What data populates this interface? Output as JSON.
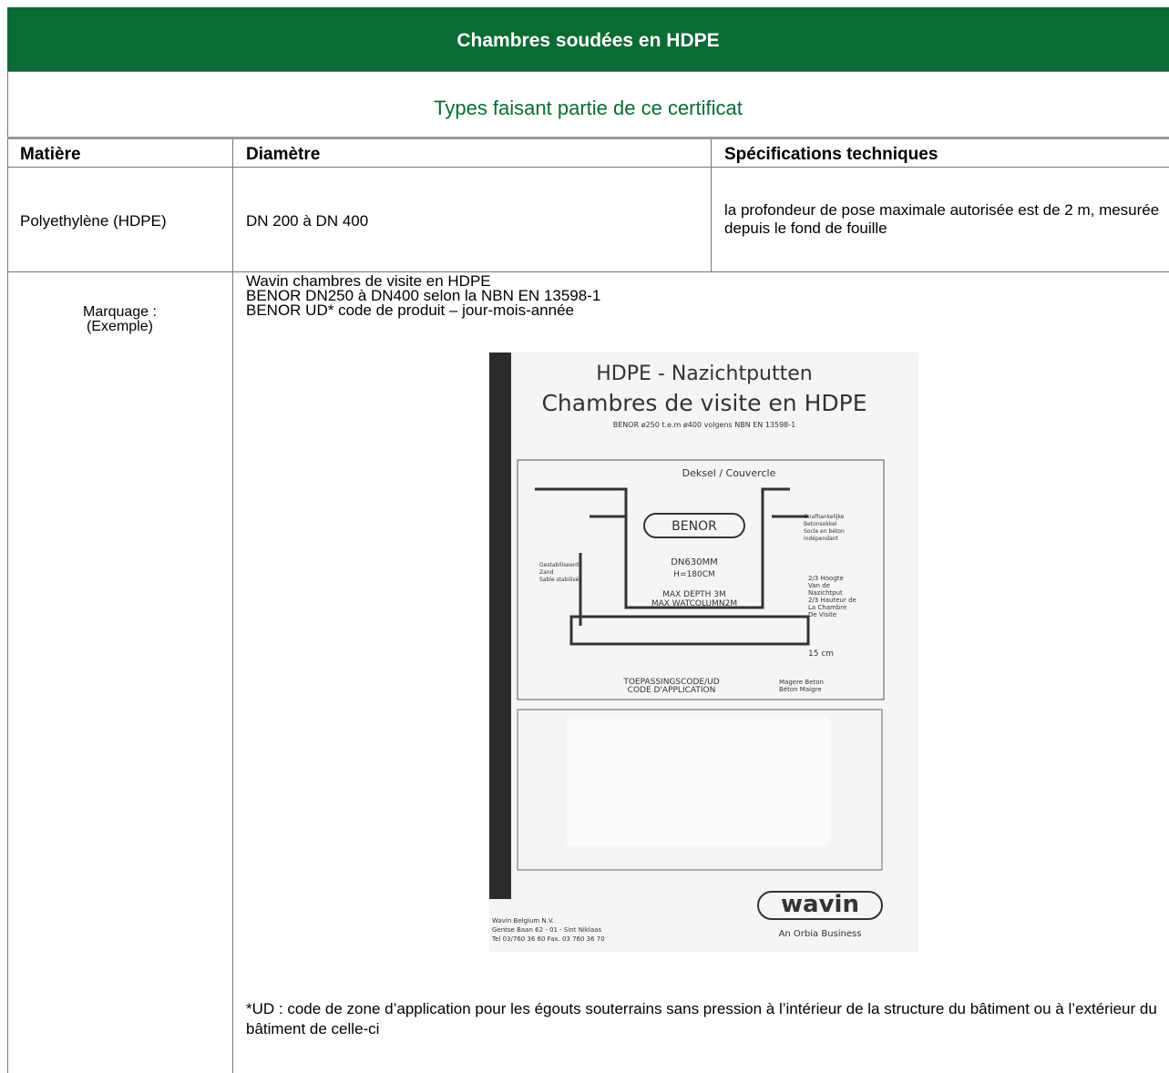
{
  "header": {
    "title": "Chambres soudées en HDPE",
    "subtitle": "Types faisant partie de ce certificat"
  },
  "table": {
    "columns": [
      "Matière",
      "Diamètre",
      "Spécifications techniques"
    ],
    "rows": [
      [
        "Polyethylène (HDPE)",
        "DN 200 à DN 400",
        "la profondeur de pose maximale autorisée est de 2 m, mesurée depuis le fond de fouille"
      ]
    ]
  },
  "marking": {
    "label": "Marquage :",
    "label_note": "(Exemple)",
    "lines": [
      "Wavin chambres de visite en HDPE",
      "BENOR DN250 à DN400 selon la NBN EN 13598-1",
      "BENOR  UD* code de produit – jour-mois-année"
    ],
    "footnote": "*UD : code de zone d’application pour les égouts souterrains sans pression à l’intérieur de la structure du bâtiment ou à l’extérieur du bâtiment de celle-ci"
  },
  "photo": {
    "title": "HDPE - Nazichtputten",
    "subtitle": "Chambres de visite en HDPE",
    "standard": "BENOR  ø250 t.e.m ø400 volgens NBN EN 13598-1",
    "cover": "Deksel / Couvercle",
    "benor": "BENOR",
    "diameter": "DN630MM",
    "height": "H=180CM",
    "max_depth": "MAX DEPTH 3M",
    "max_water": "MAX WATCOLUMN2M",
    "sand": [
      "Gestabiliseerd",
      "Zand",
      "Sable stabilisé"
    ],
    "socle": [
      "Onafhankelijke",
      "Betonsokkel",
      "Socle en béton",
      "indépendant"
    ],
    "hoogte": [
      "2/3 Hoogte",
      "Van de",
      "Nazichtput",
      "2/3 Hauteur de",
      "La Chambre",
      "De Visite"
    ],
    "base": "15 cm",
    "code": [
      "TOEPASSINGSCODE/UD",
      "CODE D'APPLICATION"
    ],
    "beton": [
      "Magere Beton",
      "Béton Maigre"
    ],
    "company": [
      "Wavin Belgium N.V.",
      "Gentse Baan 62 - 01 - Sint Niklaas",
      "Tel 03/760 36 60 Fax. 03 760 36 70"
    ],
    "logo": "wavin",
    "tagline": "An Orbia Business"
  }
}
